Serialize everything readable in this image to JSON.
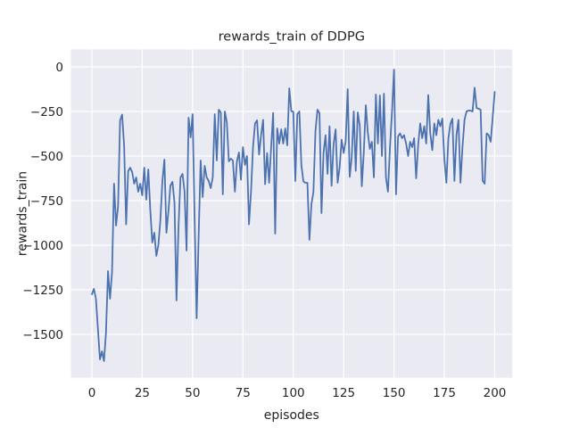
{
  "figure": {
    "title": "rewards_train of DDPG",
    "xlabel": "episodes",
    "ylabel": "rewards_train"
  },
  "colors": {
    "figure_background": "#ffffff",
    "axes_background": "#eaeaf2",
    "grid": "#ffffff",
    "line": "#4c72b0",
    "text": "#262626"
  },
  "chart_data": {
    "type": "line",
    "title": "rewards_train of DDPG",
    "xlabel": "episodes",
    "ylabel": "rewards_train",
    "grid": true,
    "legend_position": "none",
    "x_tick_labels": [
      "0",
      "25",
      "50",
      "75",
      "100",
      "125",
      "150",
      "175",
      "200"
    ],
    "x_ticks": [
      0,
      25,
      50,
      75,
      100,
      125,
      150,
      175,
      200
    ],
    "y_tick_labels": [
      "0",
      "−250",
      "−500",
      "−750",
      "−1000",
      "−1250",
      "−1500"
    ],
    "y_ticks": [
      0,
      -250,
      -500,
      -750,
      -1000,
      -1250,
      -1500
    ],
    "xlim": [
      -10,
      210
    ],
    "ylim": [
      -1742,
      97
    ],
    "series": [
      {
        "name": "rewards_train",
        "x_start": 0,
        "x_step": 1,
        "values": [
          -1275,
          -1245,
          -1300,
          -1470,
          -1640,
          -1595,
          -1650,
          -1490,
          -1145,
          -1300,
          -1150,
          -655,
          -890,
          -780,
          -300,
          -268,
          -442,
          -883,
          -585,
          -565,
          -590,
          -655,
          -620,
          -700,
          -655,
          -720,
          -565,
          -745,
          -575,
          -805,
          -985,
          -930,
          -1060,
          -1000,
          -860,
          -640,
          -520,
          -930,
          -810,
          -665,
          -645,
          -760,
          -1310,
          -900,
          -620,
          -600,
          -700,
          -1030,
          -285,
          -395,
          -265,
          -850,
          -1410,
          -950,
          -525,
          -730,
          -555,
          -620,
          -640,
          -680,
          -620,
          -265,
          -525,
          -240,
          -255,
          -715,
          -250,
          -310,
          -530,
          -515,
          -525,
          -700,
          -530,
          -480,
          -633,
          -450,
          -550,
          -500,
          -883,
          -700,
          -450,
          -317,
          -300,
          -492,
          -383,
          -297,
          -658,
          -483,
          -650,
          -450,
          -258,
          -935,
          -345,
          -430,
          -350,
          -430,
          -345,
          -440,
          -120,
          -248,
          -252,
          -640,
          -265,
          -250,
          -550,
          -642,
          -650,
          -650,
          -970,
          -770,
          -700,
          -360,
          -240,
          -260,
          -820,
          -483,
          -383,
          -600,
          -333,
          -667,
          -433,
          -350,
          -650,
          -563,
          -408,
          -483,
          -417,
          -125,
          -617,
          -508,
          -250,
          -583,
          -255,
          -330,
          -670,
          -480,
          -215,
          -370,
          -460,
          -420,
          -620,
          -155,
          -430,
          -160,
          -500,
          -150,
          -620,
          -700,
          -450,
          -250,
          -15,
          -715,
          -390,
          -373,
          -400,
          -383,
          -430,
          -500,
          -420,
          -450,
          -400,
          -625,
          -437,
          -317,
          -400,
          -333,
          -430,
          -158,
          -373,
          -467,
          -317,
          -383,
          -297,
          -333,
          -290,
          -517,
          -650,
          -400,
          -320,
          -290,
          -640,
          -383,
          -297,
          -650,
          -450,
          -297,
          -250,
          -245,
          -245,
          -250,
          -117,
          -230,
          -235,
          -240,
          -638,
          -655,
          -373,
          -383,
          -420,
          -280,
          -140
        ]
      }
    ]
  }
}
